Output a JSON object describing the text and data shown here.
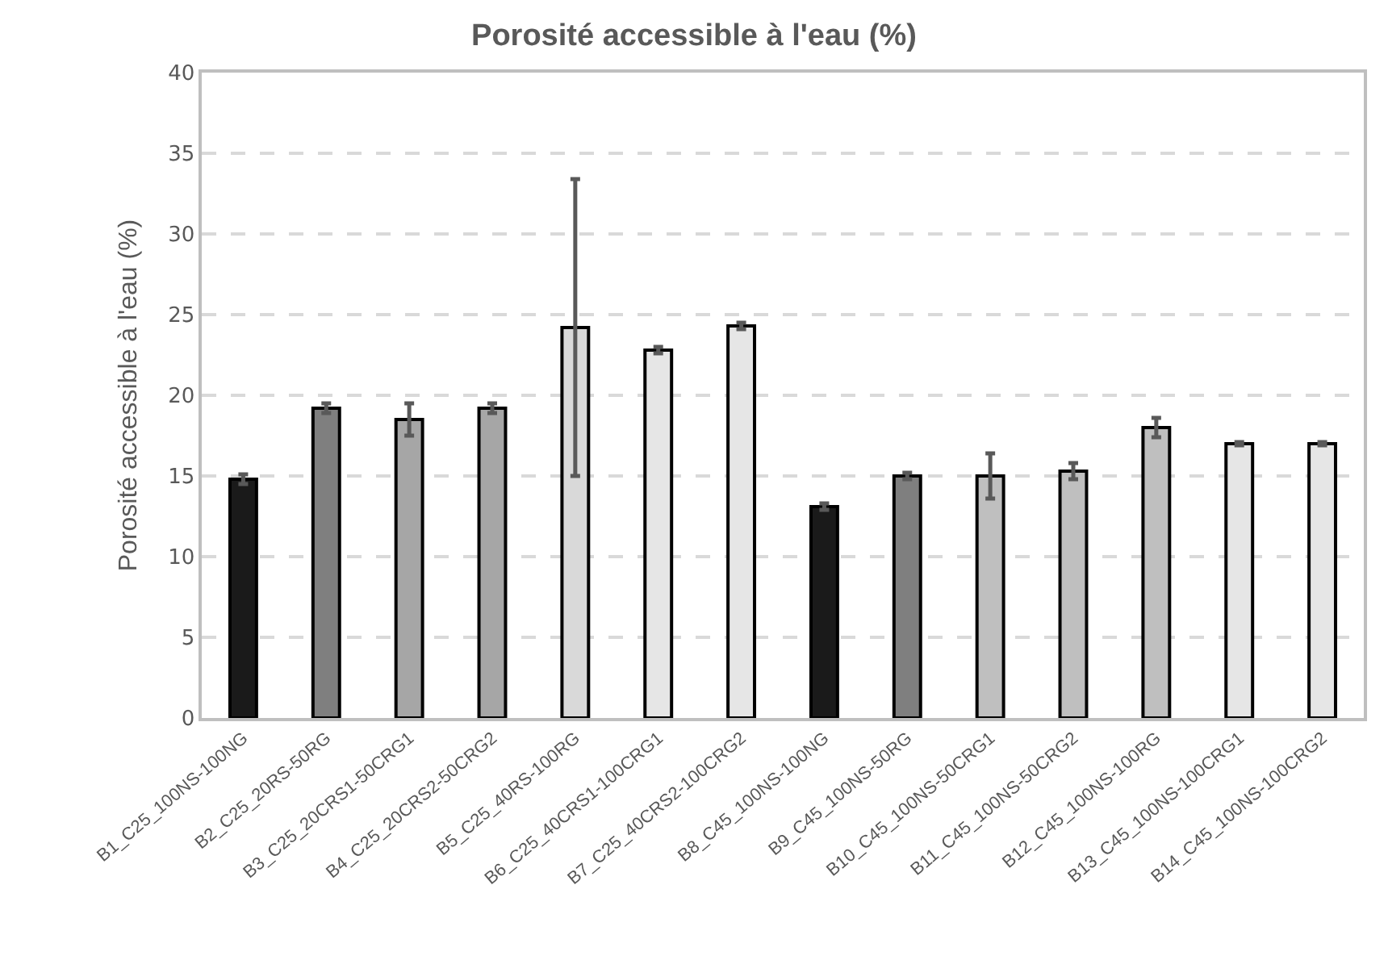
{
  "chart_data": {
    "type": "bar",
    "title": "Porosité accessible à l'eau (%)",
    "ylabel": "Porosité accessible à l'eau (%)",
    "categories": [
      "B1_C25_100NS-100NG",
      "B2_C25_20RS-50RG",
      "B3_C25_20CRS1-50CRG1",
      "B4_C25_20CRS2-50CRG2",
      "B5_C25_40RS-100RG",
      "B6_C25_40CRS1-100CRG1",
      "B7_C25_40CRS2-100CRG2",
      "B8_C45_100NS-100NG",
      "B9_C45_100NS-50RG",
      "B10_C45_100NS-50CRG1",
      "B11_C45_100NS-50CRG2",
      "B12_C45_100NS-100RG",
      "B13_C45_100NS-100CRG1",
      "B14_C45_100NS-100CRG2"
    ],
    "values": [
      14.8,
      19.2,
      18.5,
      19.2,
      24.2,
      22.8,
      24.3,
      13.1,
      15.0,
      15.0,
      15.3,
      18.0,
      17.0,
      17.0
    ],
    "errors": [
      0.3,
      0.3,
      1.0,
      0.3,
      9.2,
      0.2,
      0.2,
      0.2,
      0.2,
      1.4,
      0.5,
      0.6,
      0.1,
      0.1
    ],
    "colors": [
      "#1a1a1a",
      "#7f7f7f",
      "#a6a6a6",
      "#a6a6a6",
      "#d9d9d9",
      "#e6e6e6",
      "#e6e6e6",
      "#1a1a1a",
      "#7f7f7f",
      "#bfbfbf",
      "#bfbfbf",
      "#bfbfbf",
      "#e6e6e6",
      "#e6e6e6"
    ],
    "ylim": [
      0,
      40
    ],
    "yticks": [
      0,
      5,
      10,
      15,
      20,
      25,
      30,
      35,
      40
    ],
    "grid": "y",
    "legend": false
  }
}
